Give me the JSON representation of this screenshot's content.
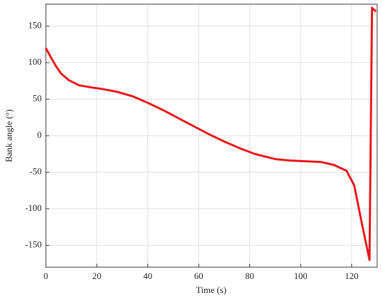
{
  "chart_data": {
    "type": "line",
    "x_label": "Time (s)",
    "y_label": "Bank angle (°)",
    "x": [
      0,
      2,
      4,
      6,
      9,
      13,
      18,
      22,
      28,
      34,
      40,
      46,
      52,
      58,
      64,
      70,
      76,
      82,
      90,
      96,
      102,
      108,
      113,
      118,
      121,
      124,
      127,
      128,
      129.5
    ],
    "series": [
      {
        "color": "#e8141a",
        "values": [
          120,
          107,
          95,
          85,
          76,
          69,
          66,
          64,
          60,
          54,
          45,
          35,
          24,
          13,
          2,
          -8,
          -17,
          -25,
          -32,
          -34,
          -35,
          -36,
          -40,
          -48,
          -68,
          -120,
          -170,
          175,
          170
        ]
      }
    ],
    "xlim": [
      0,
      130
    ],
    "ylim": [
      -180,
      180
    ],
    "xticks": [
      0,
      20,
      40,
      60,
      80,
      100,
      120
    ],
    "yticks": [
      -150,
      -100,
      -50,
      0,
      50,
      100,
      150
    ],
    "grid": true
  }
}
